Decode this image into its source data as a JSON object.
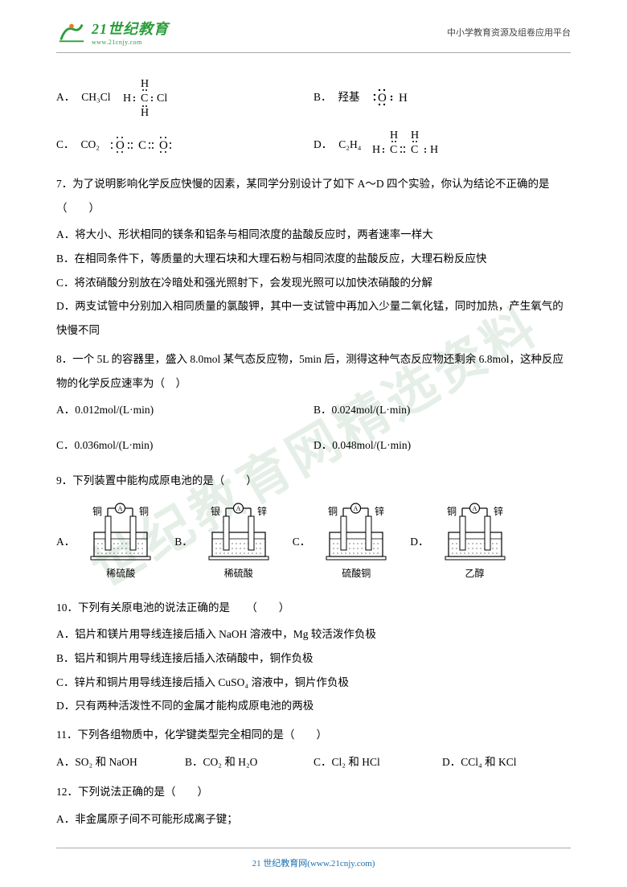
{
  "header": {
    "logo_main": "21世纪教育",
    "logo_sub": "www.21cnjy.com",
    "right_text": "中小学教育资源及组卷应用平台"
  },
  "watermark": "世纪教育网精选资料",
  "q6": {
    "a_label": "A．",
    "a_text": "CH₃Cl",
    "b_label": "B．",
    "b_text": "羟基",
    "c_label": "C．",
    "c_text": "CO₂",
    "d_label": "D．",
    "d_text": "C₂H₄"
  },
  "q7": {
    "stem": "7．为了说明影响化学反应快慢的因素，某同学分别设计了如下 A～D 四个实验，你认为结论不正确的是（　　）",
    "a": "A．将大小、形状相同的镁条和铝条与相同浓度的盐酸反应时，两者速率一样大",
    "b": "B．在相同条件下，等质量的大理石块和大理石粉与相同浓度的盐酸反应，大理石粉反应快",
    "c": "C．将浓硝酸分别放在冷暗处和强光照射下，会发现光照可以加快浓硝酸的分解",
    "d": "D．两支试管中分别加入相同质量的氯酸钾，其中一支试管中再加入少量二氧化锰，同时加热，产生氧气的快慢不同"
  },
  "q8": {
    "stem": "8．一个 5L 的容器里，盛入 8.0mol 某气态反应物，5min 后，测得这种气态反应物还剩余 6.8mol，这种反应物的化学反应速率为（　）",
    "a": "A．0.012mol/(L·min)",
    "b": "B．0.024mol/(L·min)",
    "c": "C．0.036mol/(L·min)",
    "d": "D．0.048mol/(L·min)"
  },
  "q9": {
    "stem": "9．下列装置中能构成原电池的是（　　）",
    "cells": [
      {
        "letter": "A．",
        "left": "铜",
        "right": "铜",
        "sol": "稀硫酸"
      },
      {
        "letter": "B．",
        "left": "银",
        "right": "锌",
        "sol": "稀硫酸"
      },
      {
        "letter": "C．",
        "left": "铜",
        "right": "锌",
        "sol": "硫酸铜"
      },
      {
        "letter": "D．",
        "left": "铜",
        "right": "锌",
        "sol": "乙醇"
      }
    ]
  },
  "q10": {
    "stem": "10．下列有关原电池的说法正确的是　　（　　）",
    "a": "A．铝片和镁片用导线连接后插入 NaOH 溶液中，Mg 较活泼作负极",
    "b": "B．铝片和铜片用导线连接后插入浓硝酸中，铜作负极",
    "c": "C．锌片和铜片用导线连接后插入 CuSO₄ 溶液中，铜片作负极",
    "d": "D．只有两种活泼性不同的金属才能构成原电池的两极"
  },
  "q11": {
    "stem": "11．下列各组物质中，化学键类型完全相同的是（　　）",
    "a": "A．SO₂ 和 NaOH",
    "b": "B．CO₂ 和 H₂O",
    "c": "C．Cl₂ 和 HCl",
    "d": "D．CCl₄ 和 KCl"
  },
  "q12": {
    "stem": "12．下列说法正确的是（　　）",
    "a": "A．非金属原子间不可能形成离子键；"
  },
  "footer": "21 世纪教育网(www.21cnjy.com)",
  "colors": {
    "text": "#000000",
    "logo": "#2a9d3a",
    "footer": "#1a6fb0",
    "border": "#aaaaaa",
    "watermark": "rgba(180,210,190,0.35)"
  }
}
